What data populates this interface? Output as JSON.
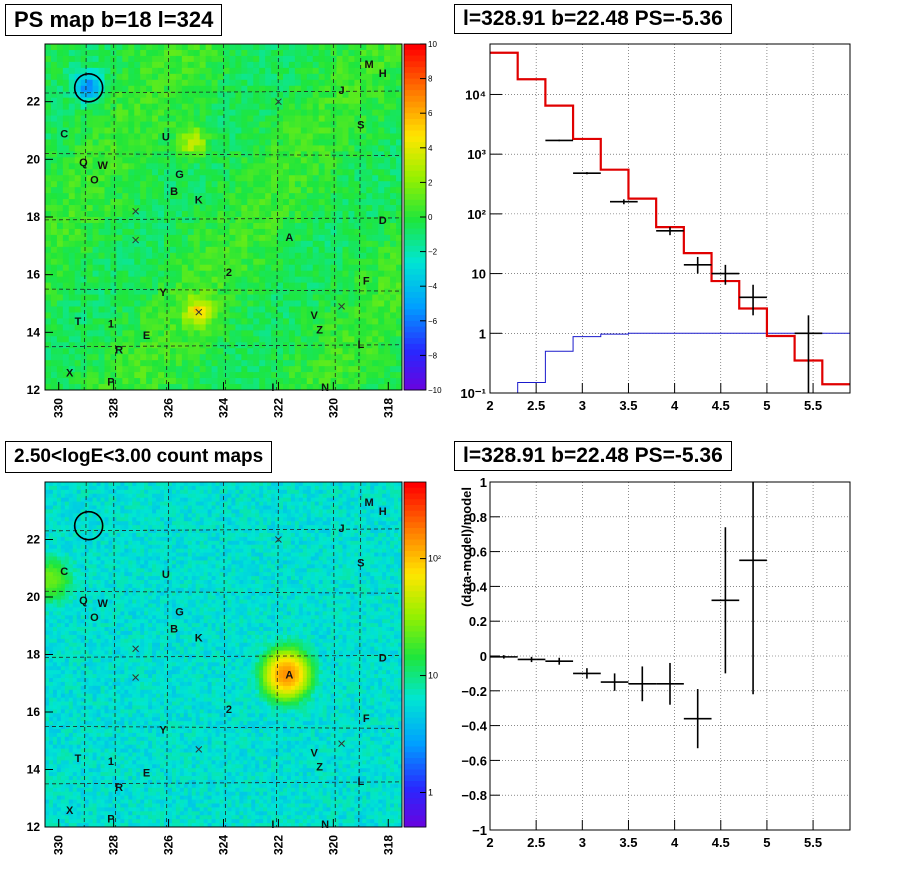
{
  "panels": {
    "tl": {
      "title": "PS map b=18 l=324",
      "x_ticks": [
        "330",
        "328",
        "326",
        "324",
        "322",
        "320",
        "318"
      ],
      "y_ticks": [
        "12",
        "14",
        "16",
        "18",
        "20",
        "22"
      ],
      "colorbar_ticks": [
        "10",
        "8",
        "6",
        "4",
        "2",
        "0",
        "−2",
        "−4",
        "−6",
        "−8",
        "−10"
      ]
    },
    "tr": {
      "title": "l=328.91 b=22.48 PS=-5.36",
      "x_ticks": [
        "2",
        "2.5",
        "3",
        "3.5",
        "4",
        "4.5",
        "5",
        "5.5"
      ],
      "y_ticks": [
        "10⁻¹",
        "1",
        "10",
        "10²",
        "10³",
        "10⁴"
      ]
    },
    "bl": {
      "title": "2.50<logE<3.00 count maps",
      "x_ticks": [
        "330",
        "328",
        "326",
        "324",
        "322",
        "320",
        "318"
      ],
      "y_ticks": [
        "12",
        "14",
        "16",
        "18",
        "20",
        "22"
      ],
      "colorbar_ticks": [
        "10²",
        "10",
        "1"
      ]
    },
    "br": {
      "title": "l=328.91 b=22.48 PS=-5.36",
      "ylabel": "(data-model)/model",
      "x_ticks": [
        "2",
        "2.5",
        "3",
        "3.5",
        "4",
        "4.5",
        "5",
        "5.5"
      ],
      "y_ticks": [
        "1",
        "0.8",
        "0.6",
        "0.4",
        "0.2",
        "0",
        "−0.2",
        "−0.4",
        "−0.6",
        "−0.8",
        "−1"
      ]
    }
  },
  "source_labels": [
    {
      "name": "M",
      "l": 318.7,
      "b": 23.3
    },
    {
      "name": "H",
      "l": 318.2,
      "b": 23.0
    },
    {
      "name": "J",
      "l": 319.7,
      "b": 22.4
    },
    {
      "name": "S",
      "l": 319.0,
      "b": 21.2
    },
    {
      "name": "C",
      "l": 329.8,
      "b": 20.9
    },
    {
      "name": "U",
      "l": 326.1,
      "b": 20.8
    },
    {
      "name": "Q",
      "l": 329.1,
      "b": 19.9
    },
    {
      "name": "W",
      "l": 328.4,
      "b": 19.8
    },
    {
      "name": "G",
      "l": 325.6,
      "b": 19.5
    },
    {
      "name": "O",
      "l": 328.7,
      "b": 19.3
    },
    {
      "name": "B",
      "l": 325.8,
      "b": 18.9
    },
    {
      "name": "K",
      "l": 324.9,
      "b": 18.6
    },
    {
      "name": "D",
      "l": 318.2,
      "b": 17.9
    },
    {
      "name": "A",
      "l": 321.6,
      "b": 17.3
    },
    {
      "name": "2",
      "l": 323.8,
      "b": 16.1
    },
    {
      "name": "F",
      "l": 318.8,
      "b": 15.8
    },
    {
      "name": "Y",
      "l": 326.2,
      "b": 15.4
    },
    {
      "name": "V",
      "l": 320.7,
      "b": 14.6
    },
    {
      "name": "T",
      "l": 329.3,
      "b": 14.4
    },
    {
      "name": "1",
      "l": 328.1,
      "b": 14.3
    },
    {
      "name": "Z",
      "l": 320.5,
      "b": 14.1
    },
    {
      "name": "E",
      "l": 326.8,
      "b": 13.9
    },
    {
      "name": "L",
      "l": 319.0,
      "b": 13.6
    },
    {
      "name": "R",
      "l": 327.8,
      "b": 13.4
    },
    {
      "name": "X",
      "l": 329.6,
      "b": 12.6
    },
    {
      "name": "P",
      "l": 328.1,
      "b": 12.3
    },
    {
      "name": "I",
      "l": 322.2,
      "b": 12.1
    },
    {
      "name": "N",
      "l": 320.3,
      "b": 12.1
    }
  ],
  "cross_markers": [
    {
      "l": 327.2,
      "b": 18.2
    },
    {
      "l": 327.2,
      "b": 17.2
    },
    {
      "l": 324.9,
      "b": 14.7
    },
    {
      "l": 319.7,
      "b": 14.9
    },
    {
      "l": 322.0,
      "b": 22.0
    }
  ],
  "selected_circle": {
    "l": 328.91,
    "b": 22.48
  },
  "chart_data": [
    {
      "type": "heatmap",
      "title": "PS map b=18 l=324",
      "x_range": [
        330.5,
        317.5
      ],
      "y_range": [
        12,
        24
      ],
      "z_range": [
        -10,
        10
      ],
      "hotspots": [
        {
          "l": 328.9,
          "b": 22.5,
          "value": -5.4
        },
        {
          "l": 325.1,
          "b": 20.6,
          "value": 4
        },
        {
          "l": 324.9,
          "b": 14.7,
          "value": 4.5
        }
      ]
    },
    {
      "type": "line",
      "title": "l=328.91 b=22.48 PS=-5.36",
      "y_scale": "log",
      "x_range": [
        2,
        5.9
      ],
      "y_range": [
        0.1,
        70000
      ],
      "grid": true,
      "model_edges": [
        2.0,
        2.3,
        2.6,
        2.9,
        3.2,
        3.5,
        3.8,
        4.1,
        4.4,
        4.7,
        5.0,
        5.3,
        5.6,
        5.9
      ],
      "model_values": [
        50000,
        18000,
        6500,
        1800,
        550,
        180,
        60,
        22,
        7.5,
        2.6,
        0.9,
        0.35,
        0.14
      ],
      "data_points": [
        {
          "x": 2.75,
          "y": 1700,
          "xerr": 0.15,
          "yerr_lo": 50,
          "yerr_hi": 50
        },
        {
          "x": 3.05,
          "y": 480,
          "xerr": 0.15,
          "yerr_lo": 20,
          "yerr_hi": 20
        },
        {
          "x": 3.45,
          "y": 160,
          "xerr": 0.15,
          "yerr_lo": 15,
          "yerr_hi": 15
        },
        {
          "x": 3.95,
          "y": 52,
          "xerr": 0.15,
          "yerr_lo": 8,
          "yerr_hi": 8
        },
        {
          "x": 4.25,
          "y": 14,
          "xerr": 0.15,
          "yerr_lo": 4,
          "yerr_hi": 5
        },
        {
          "x": 4.55,
          "y": 10,
          "xerr": 0.15,
          "yerr_lo": 3.5,
          "yerr_hi": 4
        },
        {
          "x": 4.85,
          "y": 4,
          "xerr": 0.15,
          "yerr_lo": 2,
          "yerr_hi": 2.5
        },
        {
          "x": 5.45,
          "y": 1.0,
          "xerr": 0.15,
          "yerr_lo": 0.92,
          "yerr_hi": 1.0
        }
      ],
      "ratio_edges": [
        2.3,
        2.6,
        2.9,
        3.2,
        3.5,
        3.8,
        4.1,
        4.4,
        4.7,
        5.0,
        5.3,
        5.6,
        5.9
      ],
      "ratio_values": [
        0.15,
        0.5,
        0.88,
        0.97,
        1.0,
        1.0,
        1.0,
        1.0,
        1.0,
        1.0,
        1.0,
        1.0
      ]
    },
    {
      "type": "heatmap",
      "title": "2.50<logE<3.00 count maps",
      "x_range": [
        330.5,
        317.5
      ],
      "y_range": [
        12,
        24
      ],
      "z_scale": "log",
      "z_range": [
        0.5,
        200
      ],
      "hotspots": [
        {
          "l": 321.7,
          "b": 17.3,
          "value": 150
        },
        {
          "l": 330.3,
          "b": 20.6,
          "value": 20
        }
      ]
    },
    {
      "type": "scatter",
      "title": "l=328.91 b=22.48 PS=-5.36",
      "ylabel": "(data-model)/model",
      "x_range": [
        2,
        5.9
      ],
      "y_range": [
        -1,
        1
      ],
      "grid": true,
      "points": [
        {
          "x": 2.15,
          "y": -0.005,
          "xerr": 0.15,
          "yerr": 0.01
        },
        {
          "x": 2.45,
          "y": -0.02,
          "xerr": 0.15,
          "yerr": 0.015
        },
        {
          "x": 2.75,
          "y": -0.03,
          "xerr": 0.15,
          "yerr": 0.02
        },
        {
          "x": 3.05,
          "y": -0.1,
          "xerr": 0.15,
          "yerr": 0.03
        },
        {
          "x": 3.35,
          "y": -0.15,
          "xerr": 0.15,
          "yerr": 0.05
        },
        {
          "x": 3.65,
          "y": -0.16,
          "xerr": 0.15,
          "yerr": 0.1
        },
        {
          "x": 3.95,
          "y": -0.16,
          "xerr": 0.15,
          "yerr": 0.12
        },
        {
          "x": 4.25,
          "y": -0.36,
          "xerr": 0.15,
          "yerr": 0.17
        },
        {
          "x": 4.55,
          "y": 0.32,
          "xerr": 0.15,
          "yerr": 0.42
        },
        {
          "x": 4.85,
          "y": 0.55,
          "xerr": 0.15,
          "yerr": 0.77
        }
      ]
    }
  ]
}
